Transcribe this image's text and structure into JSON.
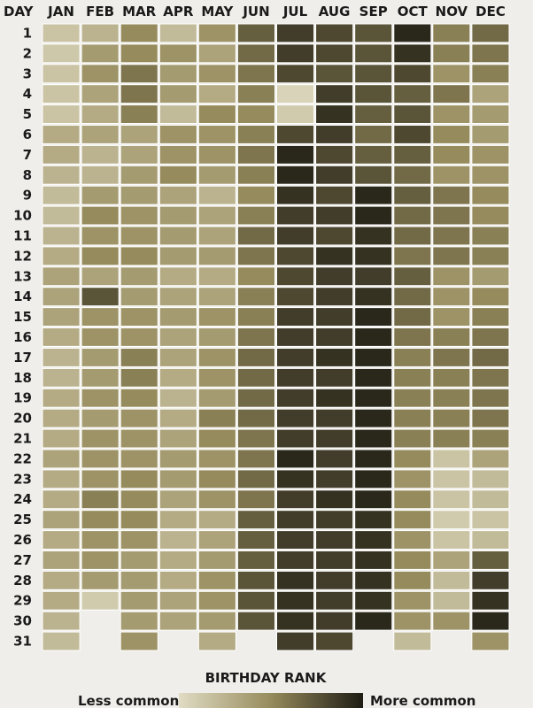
{
  "chart_data": {
    "type": "heatmap",
    "corner_label": "DAY",
    "columns": [
      "JAN",
      "FEB",
      "MAR",
      "APR",
      "MAY",
      "JUN",
      "JUL",
      "AUG",
      "SEP",
      "OCT",
      "NOV",
      "DEC"
    ],
    "rows": [
      "1",
      "2",
      "3",
      "4",
      "5",
      "6",
      "7",
      "8",
      "9",
      "10",
      "11",
      "12",
      "13",
      "14",
      "15",
      "16",
      "17",
      "18",
      "19",
      "20",
      "21",
      "22",
      "23",
      "24",
      "25",
      "26",
      "27",
      "28",
      "29",
      "30",
      "31"
    ],
    "value_meaning": "birthday rank intensity (0 = less common, 1 = more common); null = date does not exist",
    "values": [
      [
        0.15,
        0.25,
        0.5,
        0.2,
        0.45,
        0.7,
        0.85,
        0.8,
        0.75,
        0.95,
        0.55,
        0.65
      ],
      [
        0.12,
        0.4,
        0.5,
        0.45,
        0.35,
        0.65,
        0.85,
        0.8,
        0.75,
        0.9,
        0.55,
        0.6
      ],
      [
        0.15,
        0.45,
        0.6,
        0.4,
        0.45,
        0.6,
        0.8,
        0.75,
        0.75,
        0.8,
        0.45,
        0.55
      ],
      [
        0.15,
        0.35,
        0.6,
        0.4,
        0.3,
        0.55,
        0.05,
        0.85,
        0.75,
        0.7,
        0.6,
        0.35
      ],
      [
        0.15,
        0.3,
        0.55,
        0.2,
        0.5,
        0.5,
        0.1,
        0.9,
        0.7,
        0.75,
        0.45,
        0.4
      ],
      [
        0.3,
        0.35,
        0.35,
        0.45,
        0.45,
        0.55,
        0.8,
        0.85,
        0.65,
        0.8,
        0.5,
        0.4
      ],
      [
        0.3,
        0.25,
        0.35,
        0.45,
        0.45,
        0.6,
        0.95,
        0.8,
        0.7,
        0.7,
        0.5,
        0.45
      ],
      [
        0.25,
        0.25,
        0.4,
        0.5,
        0.4,
        0.55,
        0.95,
        0.85,
        0.75,
        0.65,
        0.45,
        0.45
      ],
      [
        0.2,
        0.4,
        0.4,
        0.35,
        0.25,
        0.5,
        0.9,
        0.8,
        0.95,
        0.7,
        0.6,
        0.5
      ],
      [
        0.2,
        0.5,
        0.45,
        0.4,
        0.35,
        0.55,
        0.85,
        0.85,
        0.95,
        0.65,
        0.6,
        0.5
      ],
      [
        0.25,
        0.45,
        0.45,
        0.4,
        0.35,
        0.65,
        0.85,
        0.8,
        0.9,
        0.65,
        0.6,
        0.55
      ],
      [
        0.3,
        0.5,
        0.5,
        0.4,
        0.4,
        0.6,
        0.8,
        0.9,
        0.9,
        0.6,
        0.6,
        0.55
      ],
      [
        0.35,
        0.35,
        0.4,
        0.3,
        0.3,
        0.5,
        0.8,
        0.85,
        0.85,
        0.7,
        0.45,
        0.4
      ],
      [
        0.35,
        0.75,
        0.4,
        0.35,
        0.35,
        0.55,
        0.8,
        0.85,
        0.9,
        0.65,
        0.45,
        0.5
      ],
      [
        0.35,
        0.45,
        0.45,
        0.4,
        0.45,
        0.55,
        0.85,
        0.85,
        0.95,
        0.65,
        0.45,
        0.55
      ],
      [
        0.3,
        0.45,
        0.45,
        0.35,
        0.4,
        0.6,
        0.85,
        0.85,
        0.95,
        0.6,
        0.55,
        0.6
      ],
      [
        0.25,
        0.4,
        0.55,
        0.35,
        0.45,
        0.65,
        0.85,
        0.9,
        0.95,
        0.55,
        0.6,
        0.65
      ],
      [
        0.25,
        0.4,
        0.55,
        0.3,
        0.45,
        0.65,
        0.85,
        0.85,
        0.95,
        0.55,
        0.55,
        0.6
      ],
      [
        0.3,
        0.45,
        0.5,
        0.25,
        0.4,
        0.65,
        0.85,
        0.9,
        0.95,
        0.55,
        0.55,
        0.6
      ],
      [
        0.3,
        0.4,
        0.45,
        0.3,
        0.55,
        0.65,
        0.85,
        0.85,
        0.95,
        0.55,
        0.55,
        0.6
      ],
      [
        0.3,
        0.45,
        0.45,
        0.35,
        0.5,
        0.6,
        0.85,
        0.85,
        0.95,
        0.55,
        0.55,
        0.55
      ],
      [
        0.35,
        0.45,
        0.45,
        0.4,
        0.45,
        0.6,
        0.95,
        0.85,
        0.95,
        0.5,
        0.15,
        0.35
      ],
      [
        0.3,
        0.45,
        0.5,
        0.4,
        0.5,
        0.65,
        0.9,
        0.85,
        0.95,
        0.45,
        0.15,
        0.2
      ],
      [
        0.3,
        0.55,
        0.5,
        0.35,
        0.45,
        0.6,
        0.85,
        0.9,
        0.95,
        0.5,
        0.15,
        0.2
      ],
      [
        0.35,
        0.5,
        0.5,
        0.3,
        0.3,
        0.7,
        0.85,
        0.85,
        0.9,
        0.5,
        0.1,
        0.15
      ],
      [
        0.3,
        0.45,
        0.45,
        0.25,
        0.35,
        0.7,
        0.85,
        0.85,
        0.9,
        0.45,
        0.15,
        0.2
      ],
      [
        0.35,
        0.45,
        0.4,
        0.3,
        0.4,
        0.7,
        0.85,
        0.85,
        0.9,
        0.5,
        0.35,
        0.7
      ],
      [
        0.3,
        0.4,
        0.4,
        0.3,
        0.45,
        0.75,
        0.9,
        0.85,
        0.9,
        0.5,
        0.2,
        0.85
      ],
      [
        0.3,
        0.1,
        0.4,
        0.35,
        0.45,
        0.75,
        0.9,
        0.85,
        0.9,
        0.45,
        0.2,
        0.9
      ],
      [
        0.25,
        null,
        0.4,
        0.35,
        0.4,
        0.75,
        0.9,
        0.85,
        0.95,
        0.45,
        0.45,
        0.95
      ],
      [
        0.2,
        null,
        0.45,
        null,
        0.3,
        null,
        0.85,
        0.8,
        null,
        0.2,
        null,
        0.45
      ]
    ],
    "colors": {
      "low": "#e0dbc3",
      "mid": "#968b5c",
      "high": "#1e1c14",
      "gridline": "#ffffff"
    },
    "legend": {
      "title": "BIRTHDAY RANK",
      "low_label": "Less common",
      "high_label": "More common"
    }
  }
}
